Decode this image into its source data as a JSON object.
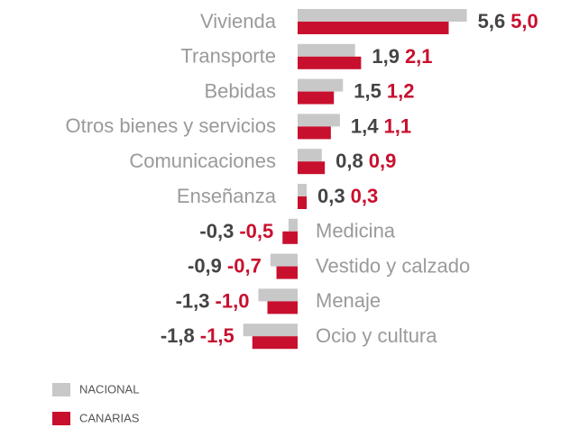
{
  "chart_data": {
    "type": "barh",
    "categories": [
      "Vivienda",
      "Transporte",
      "Bebidas",
      "Otros bienes y servicios",
      "Comunicaciones",
      "Enseñanza",
      "Medicina",
      "Vestido y calzado",
      "Menaje",
      "Ocio y cultura"
    ],
    "series": [
      {
        "name": "NACIONAL",
        "color": "#c8c8c8",
        "values": [
          5.6,
          1.9,
          1.5,
          1.4,
          0.8,
          0.3,
          -0.3,
          -0.9,
          -1.3,
          -1.8
        ],
        "value_labels": [
          "5,6",
          "1,9",
          "1,5",
          "1,4",
          "0,8",
          "0,3",
          "-0,3",
          "-0,9",
          "-1,3",
          "-1,8"
        ],
        "text_color": "#444444"
      },
      {
        "name": "CANARIAS",
        "color": "#c8102e",
        "values": [
          5.0,
          2.1,
          1.2,
          1.1,
          0.9,
          0.3,
          -0.5,
          -0.7,
          -1.0,
          -1.5
        ],
        "value_labels": [
          "5,0",
          "2,1",
          "1,2",
          "1,1",
          "0,9",
          "0,3",
          "-0,5",
          "-0,7",
          "-1,0",
          "-1,5"
        ],
        "text_color": "#c8102e"
      }
    ],
    "legend": "bottom-left"
  }
}
